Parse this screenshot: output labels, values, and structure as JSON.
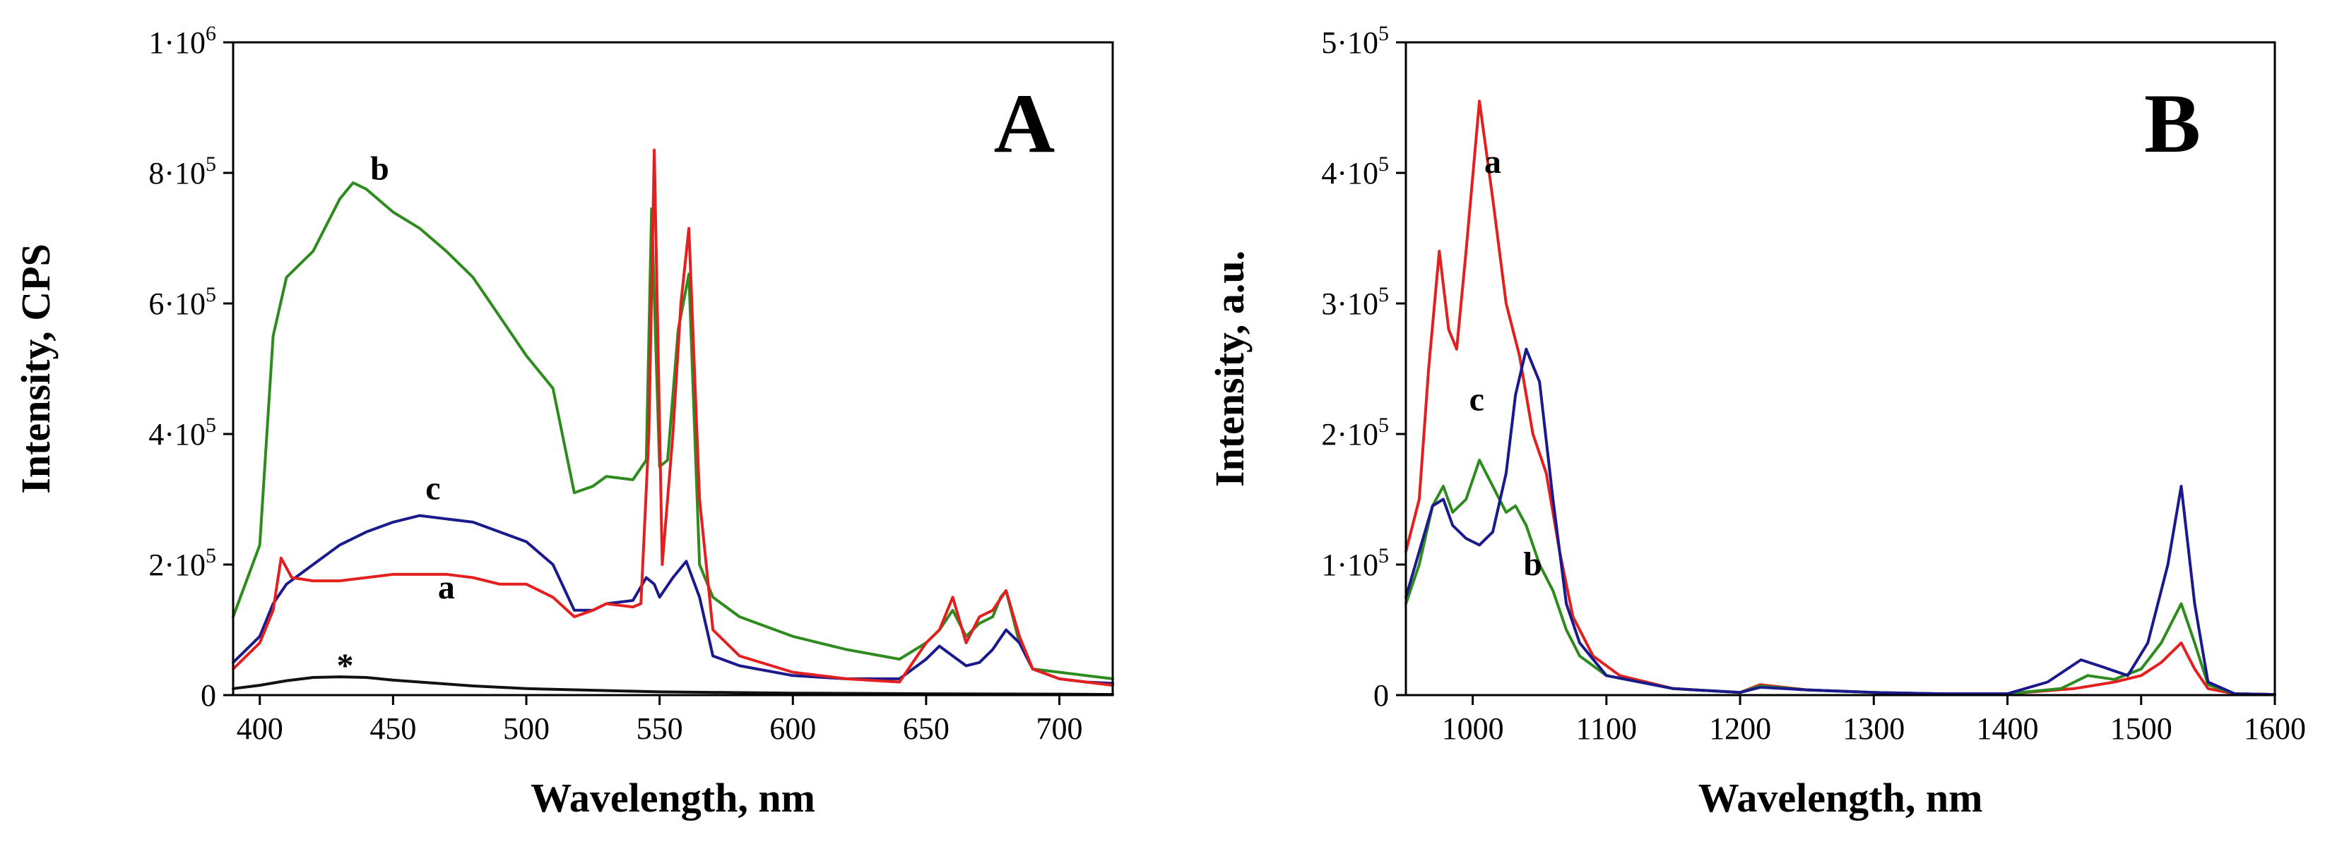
{
  "chart_data": [
    {
      "type": "line",
      "panel": "A",
      "xlabel": "Wavelength, nm",
      "ylabel": "Intensity, CPS",
      "xlim": [
        390,
        720
      ],
      "ylim": [
        0,
        1000000
      ],
      "xticks": [
        400,
        450,
        500,
        550,
        600,
        650,
        700
      ],
      "yticks": [
        {
          "value": 0,
          "mantissa": "0",
          "exp": ""
        },
        {
          "value": 200000,
          "mantissa": "2·10",
          "exp": "5"
        },
        {
          "value": 400000,
          "mantissa": "4·10",
          "exp": "5"
        },
        {
          "value": 600000,
          "mantissa": "6·10",
          "exp": "5"
        },
        {
          "value": 800000,
          "mantissa": "8·10",
          "exp": "5"
        },
        {
          "value": 1000000,
          "mantissa": "1·10",
          "exp": "6"
        }
      ],
      "series": [
        {
          "name": "b",
          "color": "#2e8b1e",
          "x": [
            390,
            400,
            405,
            410,
            420,
            430,
            435,
            440,
            450,
            460,
            470,
            480,
            490,
            500,
            510,
            518,
            525,
            530,
            540,
            545,
            547,
            550,
            553,
            557,
            561,
            565,
            570,
            580,
            600,
            620,
            640,
            650,
            655,
            660,
            665,
            670,
            675,
            678,
            680,
            685,
            690,
            700,
            710,
            720
          ],
          "values": [
            120000,
            230000,
            550000,
            640000,
            680000,
            760000,
            785000,
            775000,
            740000,
            715000,
            680000,
            640000,
            580000,
            520000,
            470000,
            310000,
            320000,
            335000,
            330000,
            360000,
            745000,
            350000,
            360000,
            560000,
            645000,
            200000,
            150000,
            120000,
            90000,
            70000,
            55000,
            80000,
            100000,
            130000,
            90000,
            110000,
            120000,
            150000,
            160000,
            80000,
            40000,
            35000,
            30000,
            25000
          ]
        },
        {
          "name": "c",
          "color": "#1a1a8c",
          "x": [
            390,
            400,
            405,
            410,
            420,
            430,
            440,
            450,
            460,
            470,
            480,
            490,
            500,
            510,
            518,
            525,
            530,
            540,
            545,
            548,
            550,
            555,
            560,
            565,
            570,
            580,
            600,
            620,
            640,
            650,
            655,
            660,
            665,
            670,
            675,
            680,
            685,
            690,
            700,
            710,
            720
          ],
          "values": [
            50000,
            90000,
            140000,
            170000,
            200000,
            230000,
            250000,
            265000,
            275000,
            270000,
            265000,
            250000,
            235000,
            200000,
            130000,
            130000,
            140000,
            145000,
            180000,
            170000,
            150000,
            180000,
            205000,
            150000,
            60000,
            45000,
            30000,
            25000,
            25000,
            55000,
            75000,
            60000,
            45000,
            50000,
            70000,
            100000,
            80000,
            40000,
            25000,
            20000,
            18000
          ]
        },
        {
          "name": "a",
          "color": "#e31f1f",
          "x": [
            390,
            400,
            405,
            408,
            412,
            420,
            430,
            440,
            450,
            460,
            470,
            480,
            490,
            500,
            510,
            518,
            525,
            530,
            540,
            543,
            546,
            548,
            551,
            555,
            558,
            561,
            565,
            570,
            580,
            600,
            620,
            640,
            650,
            655,
            660,
            665,
            670,
            675,
            680,
            685,
            690,
            700,
            710,
            720
          ],
          "values": [
            40000,
            80000,
            130000,
            210000,
            180000,
            175000,
            175000,
            180000,
            185000,
            185000,
            185000,
            180000,
            170000,
            170000,
            150000,
            120000,
            130000,
            140000,
            135000,
            140000,
            400000,
            835000,
            200000,
            400000,
            600000,
            715000,
            300000,
            100000,
            60000,
            35000,
            25000,
            20000,
            80000,
            100000,
            150000,
            80000,
            120000,
            130000,
            160000,
            90000,
            40000,
            25000,
            20000,
            15000
          ]
        },
        {
          "name": "*",
          "color": "#111111",
          "x": [
            390,
            400,
            410,
            420,
            430,
            440,
            450,
            460,
            470,
            480,
            500,
            550,
            600,
            650,
            700,
            720
          ],
          "values": [
            10000,
            15000,
            22000,
            27000,
            28000,
            27000,
            23000,
            20000,
            17000,
            14000,
            10000,
            5000,
            3000,
            2000,
            1500,
            1000
          ]
        }
      ],
      "annotations": [
        {
          "text": "b",
          "x": 445,
          "y": 790000
        },
        {
          "text": "c",
          "x": 465,
          "y": 300000
        },
        {
          "text": "a",
          "x": 470,
          "y": 148000
        },
        {
          "text": "*",
          "x": 432,
          "y": 28000
        }
      ],
      "panel_label": "A"
    },
    {
      "type": "line",
      "panel": "B",
      "xlabel": "Wavelength, nm",
      "ylabel": "Intensity, a.u.",
      "xlim": [
        950,
        1600
      ],
      "ylim": [
        0,
        500000
      ],
      "xticks": [
        1000,
        1100,
        1200,
        1300,
        1400,
        1500,
        1600
      ],
      "yticks": [
        {
          "value": 0,
          "mantissa": "0",
          "exp": ""
        },
        {
          "value": 100000,
          "mantissa": "1·10",
          "exp": "5"
        },
        {
          "value": 200000,
          "mantissa": "2·10",
          "exp": "5"
        },
        {
          "value": 300000,
          "mantissa": "3·10",
          "exp": "5"
        },
        {
          "value": 400000,
          "mantissa": "4·10",
          "exp": "5"
        },
        {
          "value": 500000,
          "mantissa": "5·10",
          "exp": "5"
        }
      ],
      "series": [
        {
          "name": "a",
          "color": "#e31f1f",
          "x": [
            950,
            960,
            967,
            975,
            982,
            988,
            995,
            1005,
            1015,
            1025,
            1035,
            1045,
            1055,
            1065,
            1075,
            1090,
            1110,
            1150,
            1200,
            1215,
            1250,
            1300,
            1350,
            1400,
            1450,
            1480,
            1500,
            1515,
            1530,
            1540,
            1550,
            1570,
            1600
          ],
          "values": [
            110000,
            150000,
            250000,
            340000,
            280000,
            265000,
            340000,
            455000,
            380000,
            300000,
            260000,
            200000,
            170000,
            110000,
            60000,
            30000,
            15000,
            5000,
            2000,
            8000,
            4000,
            2000,
            1000,
            1000,
            5000,
            10000,
            15000,
            25000,
            40000,
            20000,
            5000,
            1000,
            500
          ]
        },
        {
          "name": "c",
          "color": "#2e8b1e",
          "x": [
            950,
            960,
            970,
            978,
            985,
            995,
            1005,
            1015,
            1025,
            1032,
            1040,
            1050,
            1060,
            1070,
            1080,
            1100,
            1150,
            1200,
            1215,
            1250,
            1300,
            1350,
            1400,
            1440,
            1460,
            1480,
            1500,
            1515,
            1530,
            1540,
            1550,
            1570,
            1600
          ],
          "values": [
            70000,
            100000,
            145000,
            160000,
            140000,
            150000,
            180000,
            160000,
            140000,
            145000,
            130000,
            100000,
            80000,
            50000,
            30000,
            15000,
            5000,
            2000,
            7000,
            4000,
            2000,
            1000,
            1000,
            5000,
            15000,
            12000,
            20000,
            40000,
            70000,
            40000,
            8000,
            1000,
            500
          ]
        },
        {
          "name": "b",
          "color": "#1a1a8c",
          "x": [
            950,
            960,
            970,
            978,
            985,
            995,
            1005,
            1015,
            1025,
            1032,
            1040,
            1050,
            1060,
            1070,
            1080,
            1100,
            1150,
            1200,
            1215,
            1250,
            1300,
            1350,
            1400,
            1430,
            1455,
            1470,
            1490,
            1505,
            1520,
            1530,
            1540,
            1550,
            1570,
            1600
          ],
          "values": [
            75000,
            110000,
            145000,
            150000,
            130000,
            120000,
            115000,
            125000,
            170000,
            230000,
            265000,
            240000,
            150000,
            70000,
            40000,
            15000,
            5000,
            2000,
            6000,
            4000,
            2000,
            1000,
            1000,
            10000,
            27000,
            22000,
            15000,
            40000,
            100000,
            160000,
            70000,
            10000,
            1000,
            500
          ]
        }
      ],
      "annotations": [
        {
          "text": "a",
          "x": 1015,
          "y": 400000
        },
        {
          "text": "c",
          "x": 1003,
          "y": 218000
        },
        {
          "text": "b",
          "x": 1045,
          "y": 92000
        }
      ],
      "panel_label": "B"
    }
  ]
}
